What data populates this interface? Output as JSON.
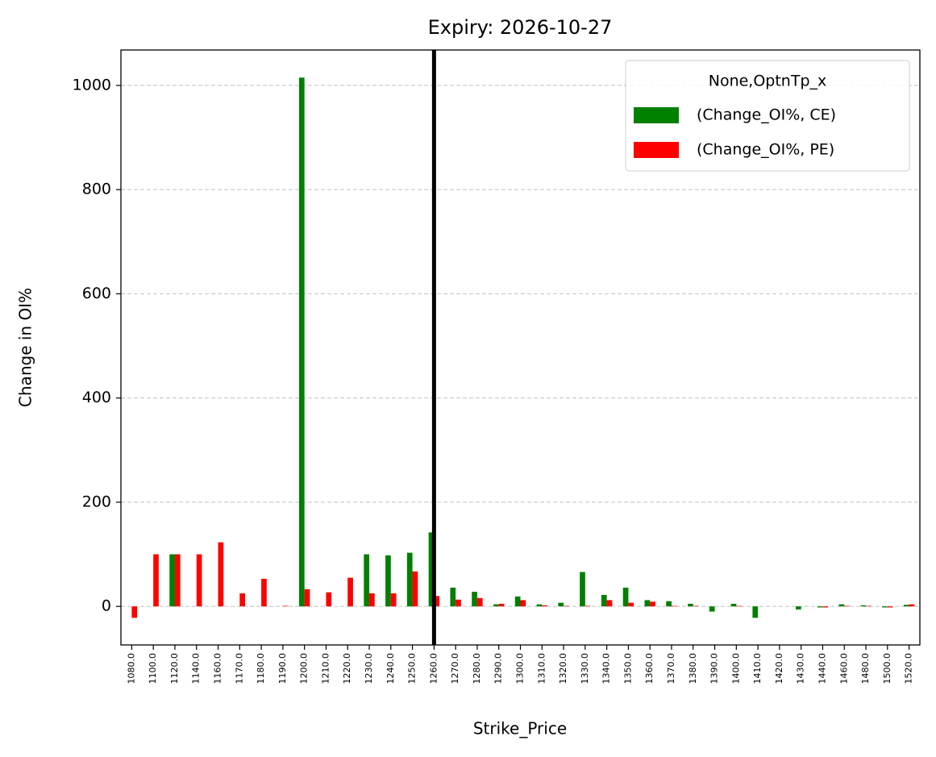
{
  "chart_data": {
    "type": "bar",
    "title": "Expiry: 2026-10-27",
    "x_label": "Strike_Price",
    "y_label": "Change in OI%",
    "categories": [
      "1080.0",
      "1100.0",
      "1120.0",
      "1140.0",
      "1160.0",
      "1170.0",
      "1180.0",
      "1190.0",
      "1200.0",
      "1210.0",
      "1220.0",
      "1230.0",
      "1240.0",
      "1250.0",
      "1260.0",
      "1270.0",
      "1280.0",
      "1290.0",
      "1300.0",
      "1310.0",
      "1320.0",
      "1330.0",
      "1340.0",
      "1350.0",
      "1360.0",
      "1370.0",
      "1380.0",
      "1390.0",
      "1400.0",
      "1410.0",
      "1420.0",
      "1430.0",
      "1440.0",
      "1460.0",
      "1480.0",
      "1500.0",
      "1520.0"
    ],
    "series": [
      {
        "name": "(Change_OI%, CE)",
        "color": "#008000",
        "values": [
          0,
          0,
          100,
          0,
          0,
          0,
          0,
          0,
          1015,
          0,
          0,
          100,
          98,
          103,
          142,
          36,
          28,
          4,
          19,
          4,
          7,
          66,
          22,
          36,
          12,
          10,
          5,
          -10,
          5,
          -22,
          0,
          -6,
          -2,
          4,
          2,
          -2,
          3
        ]
      },
      {
        "name": "(Change_OI%, PE)",
        "color": "#ff0000",
        "values": [
          -22,
          100,
          100,
          100,
          123,
          25,
          53,
          1,
          33,
          27,
          55,
          25,
          25,
          67,
          20,
          13,
          16,
          5,
          12,
          2,
          1,
          1,
          12,
          7,
          9,
          1,
          1,
          0,
          1,
          0,
          0,
          0,
          -2,
          1,
          1,
          -2,
          4
        ]
      }
    ],
    "legend_title": "None,OptnTp_x",
    "legend": "upper right",
    "ylim": [
      -74,
      1068
    ],
    "yticks": [
      0,
      200,
      400,
      600,
      800,
      1000
    ],
    "grid": true,
    "vline": {
      "category": "1260.0",
      "color": "#000000"
    }
  }
}
